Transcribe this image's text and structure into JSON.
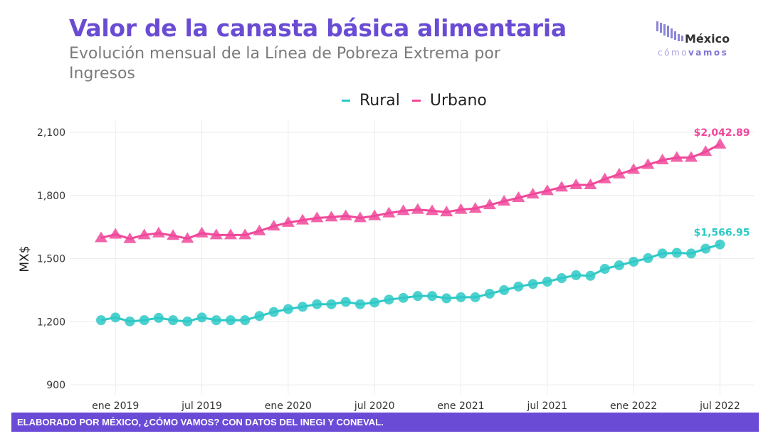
{
  "header": {
    "title": "Valor de la canasta básica alimentaria",
    "subtitle": "Evolución mensual de la Línea de Pobreza Extrema por Ingresos"
  },
  "logo": {
    "text_top": "México",
    "text_bottom": "cómovamos"
  },
  "footer": {
    "source": "ELABORADO POR MÉXICO, ¿CÓMO VAMOS? CON DATOS DEL INEGI Y CONEVAL."
  },
  "colors": {
    "rural": "#2ec9c6",
    "urbano": "#f0489a",
    "title": "#6a4bd3",
    "footer": "#6a4bd6"
  },
  "chart_data": {
    "type": "line",
    "title": "Valor de la canasta básica alimentaria",
    "subtitle": "Evolución mensual de la Línea de Pobreza Extrema por Ingresos",
    "xlabel": "",
    "ylabel": "MX$",
    "ylim": [
      900,
      2100
    ],
    "yticks": [
      900,
      1200,
      1500,
      1800,
      2100
    ],
    "ytick_labels": [
      "900",
      "1,200",
      "1,500",
      "1,800",
      "2,100"
    ],
    "xticks": [
      "2019-01",
      "2019-07",
      "2020-01",
      "2020-07",
      "2021-01",
      "2021-07",
      "2022-01",
      "2022-07"
    ],
    "xtick_labels": [
      "ene 2019",
      "jul 2019",
      "ene 2020",
      "jul 2020",
      "ene 2021",
      "jul 2021",
      "ene 2022",
      "jul 2022"
    ],
    "grid": true,
    "legend": "top-center",
    "x": [
      "2018-12",
      "2019-01",
      "2019-02",
      "2019-03",
      "2019-04",
      "2019-05",
      "2019-06",
      "2019-07",
      "2019-08",
      "2019-09",
      "2019-10",
      "2019-11",
      "2019-12",
      "2020-01",
      "2020-02",
      "2020-03",
      "2020-04",
      "2020-05",
      "2020-06",
      "2020-07",
      "2020-08",
      "2020-09",
      "2020-10",
      "2020-11",
      "2020-12",
      "2021-01",
      "2021-02",
      "2021-03",
      "2021-04",
      "2021-05",
      "2021-06",
      "2021-07",
      "2021-08",
      "2021-09",
      "2021-10",
      "2021-11",
      "2021-12",
      "2022-01",
      "2022-02",
      "2022-03",
      "2022-04",
      "2022-05",
      "2022-06",
      "2022-07"
    ],
    "series": [
      {
        "name": "Rural",
        "marker": "circle",
        "end_label": "$1,566.95",
        "values": [
          1207,
          1220,
          1201,
          1207,
          1218,
          1207,
          1201,
          1220,
          1207,
          1207,
          1207,
          1227,
          1246,
          1260,
          1271,
          1283,
          1283,
          1294,
          1283,
          1291,
          1305,
          1313,
          1322,
          1322,
          1311,
          1316,
          1316,
          1333,
          1350,
          1367,
          1379,
          1390,
          1407,
          1421,
          1418,
          1451,
          1468,
          1485,
          1502,
          1524,
          1527,
          1524,
          1547,
          1566.95
        ]
      },
      {
        "name": "Urbano",
        "marker": "triangle",
        "end_label": "$2,042.89",
        "values": [
          1598,
          1615,
          1594,
          1612,
          1621,
          1609,
          1595,
          1621,
          1612,
          1612,
          1612,
          1631,
          1654,
          1671,
          1682,
          1693,
          1697,
          1703,
          1693,
          1703,
          1716,
          1727,
          1733,
          1727,
          1721,
          1733,
          1738,
          1755,
          1772,
          1789,
          1806,
          1822,
          1839,
          1850,
          1850,
          1878,
          1901,
          1923,
          1946,
          1968,
          1980,
          1980,
          2008,
          2042.89
        ]
      }
    ]
  }
}
